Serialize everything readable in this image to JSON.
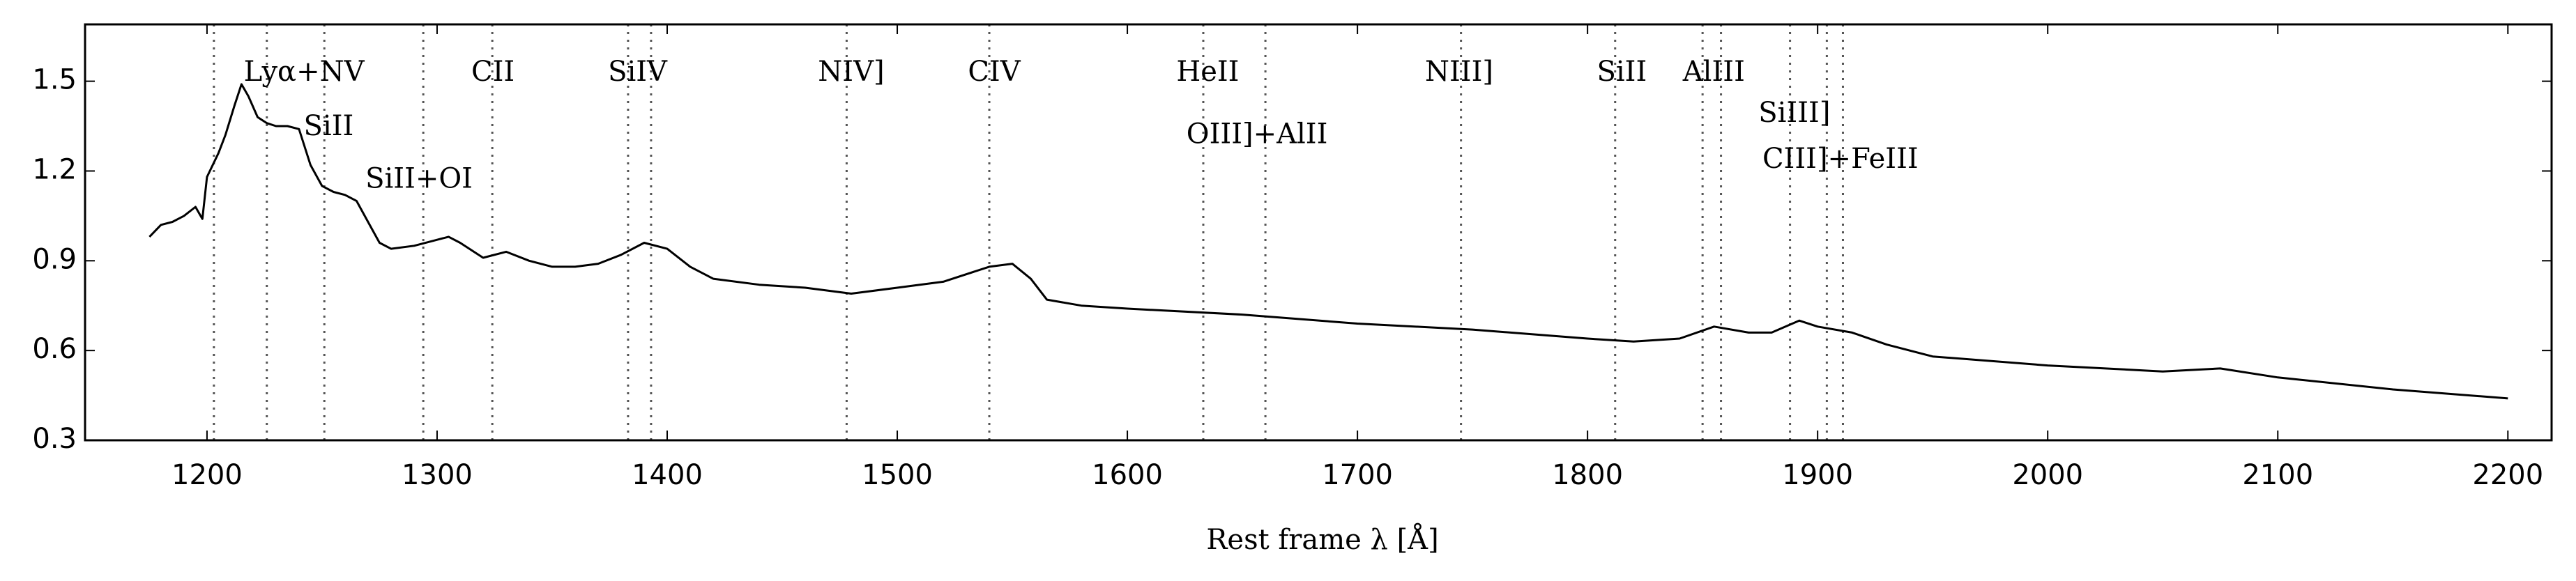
{
  "chart_data": {
    "type": "line",
    "xlabel": "Rest frame λ [Å]",
    "xlim": [
      1147,
      2219
    ],
    "xticks": [
      1200,
      1300,
      1400,
      1500,
      1600,
      1700,
      1800,
      1900,
      2000,
      2100,
      2200
    ],
    "ylim": [
      0.3,
      1.69
    ],
    "yticks": [
      0.3,
      0.6,
      0.9,
      1.2,
      1.5
    ],
    "color": "#000000",
    "x": [
      1175,
      1180,
      1185,
      1190,
      1195,
      1198,
      1200,
      1205,
      1208,
      1212,
      1215,
      1218,
      1222,
      1226,
      1230,
      1235,
      1240,
      1245,
      1250,
      1255,
      1260,
      1265,
      1270,
      1275,
      1280,
      1290,
      1300,
      1305,
      1310,
      1320,
      1330,
      1340,
      1350,
      1360,
      1370,
      1380,
      1390,
      1400,
      1410,
      1420,
      1440,
      1460,
      1480,
      1500,
      1520,
      1540,
      1550,
      1558,
      1565,
      1580,
      1600,
      1650,
      1700,
      1750,
      1800,
      1820,
      1840,
      1855,
      1870,
      1880,
      1892,
      1900,
      1915,
      1930,
      1950,
      2000,
      2050,
      2075,
      2100,
      2150,
      2200
    ],
    "values": [
      0.98,
      1.02,
      1.03,
      1.05,
      1.08,
      1.04,
      1.18,
      1.26,
      1.32,
      1.42,
      1.49,
      1.45,
      1.38,
      1.36,
      1.35,
      1.35,
      1.34,
      1.22,
      1.15,
      1.13,
      1.12,
      1.1,
      1.03,
      0.96,
      0.94,
      0.95,
      0.97,
      0.98,
      0.96,
      0.91,
      0.93,
      0.9,
      0.88,
      0.88,
      0.89,
      0.92,
      0.96,
      0.94,
      0.88,
      0.84,
      0.82,
      0.81,
      0.79,
      0.81,
      0.83,
      0.88,
      0.89,
      0.84,
      0.77,
      0.75,
      0.74,
      0.72,
      0.69,
      0.67,
      0.64,
      0.63,
      0.64,
      0.68,
      0.66,
      0.66,
      0.7,
      0.68,
      0.66,
      0.62,
      0.58,
      0.55,
      0.53,
      0.54,
      0.51,
      0.47,
      0.44
    ],
    "markers": [
      1203,
      1226,
      1251,
      1294,
      1324,
      1383,
      1393,
      1478,
      1540,
      1633,
      1660,
      1745,
      1812,
      1850,
      1858,
      1888,
      1904,
      1911
    ],
    "annotations": [
      "Lyα+NV",
      "SiII",
      "SiII+OI",
      "CII",
      "SiIV",
      "NIV]",
      "CIV",
      "HeII",
      "OIII]+AlII",
      "NIII]",
      "SiII",
      "AlIII",
      "SiIII]",
      "CIII]+FeIII"
    ]
  }
}
